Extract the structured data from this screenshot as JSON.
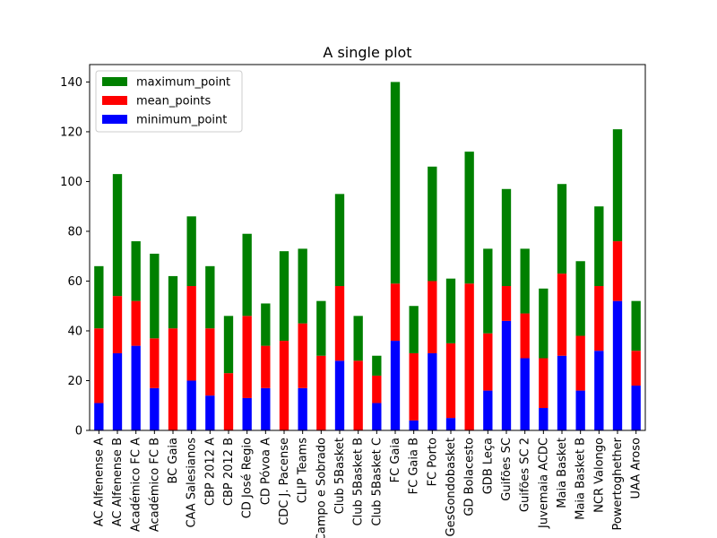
{
  "chart_data": {
    "type": "bar",
    "stacked": true,
    "title": "A single plot",
    "xlabel": "",
    "ylabel": "",
    "ylim": [
      0,
      147
    ],
    "yticks": [
      0,
      20,
      40,
      60,
      80,
      100,
      120,
      140
    ],
    "grid": false,
    "legend_position": "upper-left",
    "categories": [
      "AC Alfenense A",
      "AC Alfenense B",
      "Académico FC A",
      "Académico FC B",
      "BC Gaia",
      "CAA Salesianos",
      "CBP 2012 A",
      "CBP 2012 B",
      "CD José Regio",
      "CD Póvoa A",
      "CDC J. Pacense",
      "CLIP Teams",
      "Campo e Sobrado",
      "Club 5Basket",
      "Club 5Basket B",
      "Club 5Basket C",
      "FC Gaia",
      "FC Gaia B",
      "FC Porto",
      "GesGondobasket",
      "GD Bolacesto",
      "GDB Leça",
      "Guifões SC",
      "Guifões SC 2",
      "Juvemaia ACDC",
      "Maia Basket",
      "Maia Basket B",
      "NCR Valongo",
      "Powertoghether",
      "UAA Aroso"
    ],
    "series": [
      {
        "name": "minimum_point",
        "color": "#0000ff",
        "values": [
          11,
          31,
          34,
          17,
          0,
          20,
          14,
          0,
          13,
          17,
          0,
          17,
          0,
          28,
          0,
          11,
          36,
          4,
          31,
          5,
          0,
          16,
          44,
          29,
          9,
          30,
          16,
          32,
          52,
          18
        ]
      },
      {
        "name": "mean_points",
        "color": "#ff0000",
        "values": [
          30,
          23,
          18,
          20,
          41,
          38,
          27,
          23,
          33,
          17,
          36,
          26,
          30,
          30,
          28,
          11,
          23,
          27,
          29,
          30,
          59,
          23,
          14,
          18,
          20,
          33,
          22,
          26,
          24,
          14
        ]
      },
      {
        "name": "maximum_point",
        "color": "#008000",
        "values": [
          25,
          49,
          24,
          34,
          21,
          28,
          25,
          23,
          33,
          17,
          36,
          30,
          22,
          37,
          18,
          8,
          81,
          19,
          46,
          26,
          53,
          34,
          39,
          26,
          28,
          36,
          30,
          32,
          45,
          20
        ]
      }
    ],
    "legend_order": [
      "maximum_point",
      "mean_points",
      "minimum_point"
    ]
  }
}
